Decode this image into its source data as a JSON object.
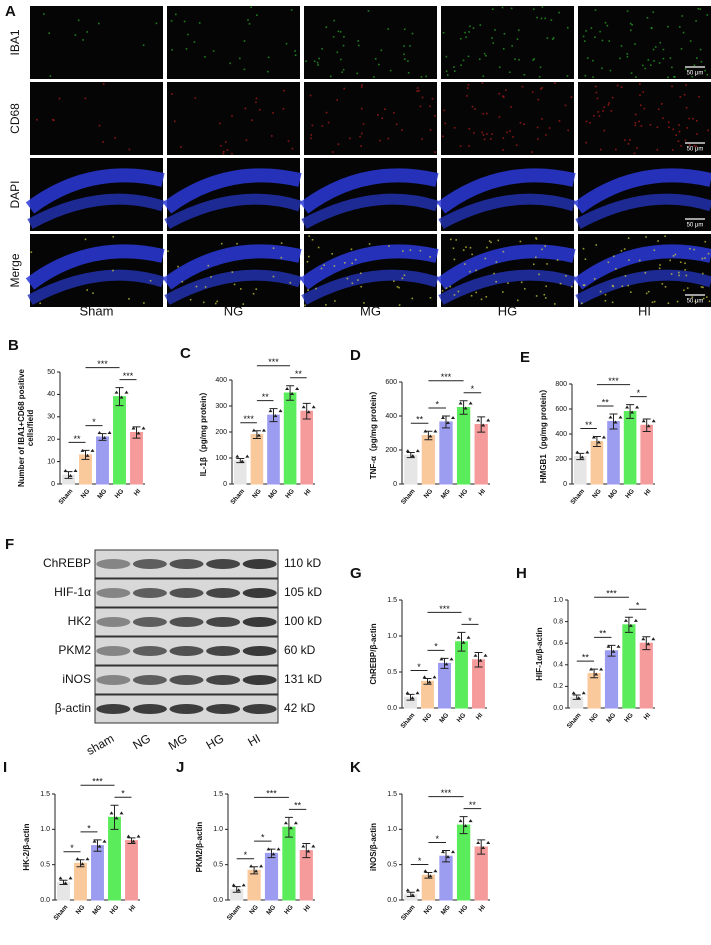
{
  "panels": {
    "label": "A",
    "rows": [
      "IBA1",
      "CD68",
      "DAPI",
      "Merge"
    ],
    "columns": [
      "Sham",
      "NG",
      "MG",
      "HG",
      "HI"
    ],
    "scale_bar": "50 μm"
  },
  "blot": {
    "label": "F",
    "proteins": [
      "ChREBP",
      "HIF-1α",
      "HK2",
      "PKM2",
      "iNOS",
      "β-actin"
    ],
    "sizes": [
      "110 kD",
      "105 kD",
      "100 kD",
      "60 kD",
      "131 kD",
      "42 kD"
    ],
    "lanes": [
      "sham",
      "NG",
      "MG",
      "HG",
      "HI"
    ]
  },
  "chart_data": [
    {
      "type": "bar",
      "label": "B",
      "ylabel": [
        "Number of IBA1+CD68 positive",
        "cells/field"
      ],
      "categories": [
        "Sham",
        "NG",
        "MG",
        "HG",
        "HI"
      ],
      "values": [
        4,
        13,
        21,
        39,
        23
      ],
      "errors": [
        1.5,
        2,
        1.5,
        4,
        2.5
      ],
      "colors": [
        "#e6e6e6",
        "#f9c99c",
        "#9c9cf0",
        "#5bec5b",
        "#f59b9b"
      ],
      "ylim": [
        0,
        50
      ],
      "yticks": [
        0,
        10,
        20,
        30,
        40,
        50
      ],
      "significance": [
        {
          "between": [
            "Sham",
            "NG"
          ],
          "label": "**"
        },
        {
          "between": [
            "NG",
            "MG"
          ],
          "label": "*"
        },
        {
          "between": [
            "NG",
            "HG"
          ],
          "label": "***"
        },
        {
          "between": [
            "HG",
            "HI"
          ],
          "label": "***"
        }
      ]
    },
    {
      "type": "bar",
      "label": "C",
      "ylabel": "IL-1β（pg/mg protein）",
      "categories": [
        "Sham",
        "NG",
        "MG",
        "HG",
        "HI"
      ],
      "values": [
        90,
        190,
        265,
        350,
        280
      ],
      "errors": [
        8,
        15,
        25,
        28,
        30
      ],
      "colors": [
        "#e6e6e6",
        "#f9c99c",
        "#9c9cf0",
        "#5bec5b",
        "#f59b9b"
      ],
      "ylim": [
        0,
        400
      ],
      "yticks": [
        0,
        100,
        200,
        300,
        400
      ],
      "significance": [
        {
          "between": [
            "Sham",
            "NG"
          ],
          "label": "***"
        },
        {
          "between": [
            "NG",
            "MG"
          ],
          "label": "**"
        },
        {
          "between": [
            "NG",
            "HG"
          ],
          "label": "***"
        },
        {
          "between": [
            "HG",
            "HI"
          ],
          "label": "**"
        }
      ]
    },
    {
      "type": "bar",
      "label": "D",
      "ylabel": "TNF-α（pg/mg protein）",
      "categories": [
        "Sham",
        "NG",
        "MG",
        "HG",
        "HI"
      ],
      "values": [
        170,
        285,
        365,
        450,
        350
      ],
      "errors": [
        15,
        25,
        35,
        40,
        45
      ],
      "colors": [
        "#e6e6e6",
        "#f9c99c",
        "#9c9cf0",
        "#5bec5b",
        "#f59b9b"
      ],
      "ylim": [
        0,
        600
      ],
      "yticks": [
        0,
        200,
        400,
        600
      ],
      "significance": [
        {
          "between": [
            "Sham",
            "NG"
          ],
          "label": "**"
        },
        {
          "between": [
            "NG",
            "MG"
          ],
          "label": "*"
        },
        {
          "between": [
            "NG",
            "HG"
          ],
          "label": "***"
        },
        {
          "between": [
            "HG",
            "HI"
          ],
          "label": "*"
        }
      ]
    },
    {
      "type": "bar",
      "label": "E",
      "ylabel": "HMGB1（pg/mg protein）",
      "categories": [
        "Sham",
        "NG",
        "MG",
        "HG",
        "HI"
      ],
      "values": [
        220,
        340,
        500,
        580,
        470
      ],
      "errors": [
        25,
        40,
        60,
        55,
        50
      ],
      "colors": [
        "#e6e6e6",
        "#f9c99c",
        "#9c9cf0",
        "#5bec5b",
        "#f59b9b"
      ],
      "ylim": [
        0,
        800
      ],
      "yticks": [
        0,
        200,
        400,
        600,
        800
      ],
      "significance": [
        {
          "between": [
            "Sham",
            "NG"
          ],
          "label": "**"
        },
        {
          "between": [
            "NG",
            "MG"
          ],
          "label": "**"
        },
        {
          "between": [
            "NG",
            "HG"
          ],
          "label": "***"
        },
        {
          "between": [
            "HG",
            "HI"
          ],
          "label": "*"
        }
      ]
    },
    {
      "type": "bar",
      "label": "G",
      "ylabel": "ChREBP/β-actin",
      "categories": [
        "Sham",
        "NG",
        "MG",
        "HG",
        "HI"
      ],
      "values": [
        0.15,
        0.37,
        0.62,
        0.92,
        0.67
      ],
      "errors": [
        0.04,
        0.04,
        0.07,
        0.13,
        0.1
      ],
      "colors": [
        "#e6e6e6",
        "#f9c99c",
        "#9c9cf0",
        "#5bec5b",
        "#f59b9b"
      ],
      "ylim": [
        0,
        1.5
      ],
      "yticks": [
        {
          "value": 0,
          "label": "0.0"
        },
        {
          "value": 0.5,
          "label": "0.5"
        },
        {
          "value": 1,
          "label": "1.0"
        },
        {
          "value": 1.5,
          "label": "1.5"
        }
      ],
      "significance": [
        {
          "between": [
            "Sham",
            "NG"
          ],
          "label": "*"
        },
        {
          "between": [
            "NG",
            "MG"
          ],
          "label": "*"
        },
        {
          "between": [
            "NG",
            "HG"
          ],
          "label": "***"
        },
        {
          "between": [
            "HG",
            "HI"
          ],
          "label": "*"
        }
      ]
    },
    {
      "type": "bar",
      "label": "H",
      "ylabel": "HIF-1α/β-actin",
      "categories": [
        "Sham",
        "NG",
        "MG",
        "HG",
        "HI"
      ],
      "values": [
        0.1,
        0.32,
        0.53,
        0.77,
        0.6
      ],
      "errors": [
        0.02,
        0.04,
        0.05,
        0.07,
        0.06
      ],
      "colors": [
        "#e6e6e6",
        "#f9c99c",
        "#9c9cf0",
        "#5bec5b",
        "#f59b9b"
      ],
      "ylim": [
        0,
        1
      ],
      "yticks": [
        {
          "value": 0,
          "label": "0.0"
        },
        {
          "value": 0.2,
          "label": "0.2"
        },
        {
          "value": 0.4,
          "label": "0.4"
        },
        {
          "value": 0.6,
          "label": "0.6"
        },
        {
          "value": 0.8,
          "label": "0.8"
        },
        {
          "value": 1,
          "label": "1.0"
        }
      ],
      "significance": [
        {
          "between": [
            "Sham",
            "NG"
          ],
          "label": "**"
        },
        {
          "between": [
            "NG",
            "MG"
          ],
          "label": "**"
        },
        {
          "between": [
            "NG",
            "HG"
          ],
          "label": "***"
        },
        {
          "between": [
            "HG",
            "HI"
          ],
          "label": "*"
        }
      ]
    },
    {
      "type": "bar",
      "label": "I",
      "ylabel": "HK-2/β-actin",
      "categories": [
        "Sham",
        "NG",
        "MG",
        "HG",
        "HI"
      ],
      "values": [
        0.25,
        0.52,
        0.77,
        1.17,
        0.84
      ],
      "errors": [
        0.03,
        0.05,
        0.08,
        0.17,
        0.04
      ],
      "colors": [
        "#e6e6e6",
        "#f9c99c",
        "#9c9cf0",
        "#5bec5b",
        "#f59b9b"
      ],
      "ylim": [
        0,
        1.5
      ],
      "yticks": [
        {
          "value": 0,
          "label": "0.0"
        },
        {
          "value": 0.5,
          "label": "0.5"
        },
        {
          "value": 1,
          "label": "1.0"
        },
        {
          "value": 1.5,
          "label": "1.5"
        }
      ],
      "significance": [
        {
          "between": [
            "Sham",
            "NG"
          ],
          "label": "*"
        },
        {
          "between": [
            "NG",
            "MG"
          ],
          "label": "*"
        },
        {
          "between": [
            "NG",
            "HG"
          ],
          "label": "***"
        },
        {
          "between": [
            "HG",
            "HI"
          ],
          "label": "*"
        }
      ]
    },
    {
      "type": "bar",
      "label": "J",
      "ylabel": "PKM2/β-actin",
      "categories": [
        "Sham",
        "NG",
        "MG",
        "HG",
        "HI"
      ],
      "values": [
        0.15,
        0.42,
        0.66,
        1.03,
        0.7
      ],
      "errors": [
        0.04,
        0.05,
        0.06,
        0.14,
        0.1
      ],
      "colors": [
        "#e6e6e6",
        "#f9c99c",
        "#9c9cf0",
        "#5bec5b",
        "#f59b9b"
      ],
      "ylim": [
        0,
        1.5
      ],
      "yticks": [
        {
          "value": 0,
          "label": "0.0"
        },
        {
          "value": 0.5,
          "label": "0.5"
        },
        {
          "value": 1,
          "label": "1.0"
        },
        {
          "value": 1.5,
          "label": "1.5"
        }
      ],
      "significance": [
        {
          "between": [
            "Sham",
            "NG"
          ],
          "label": "*"
        },
        {
          "between": [
            "NG",
            "MG"
          ],
          "label": "*"
        },
        {
          "between": [
            "NG",
            "HG"
          ],
          "label": "***"
        },
        {
          "between": [
            "HG",
            "HI"
          ],
          "label": "**"
        }
      ]
    },
    {
      "type": "bar",
      "label": "K",
      "ylabel": "iNOS/β-actin",
      "categories": [
        "Sham",
        "NG",
        "MG",
        "HG",
        "HI"
      ],
      "values": [
        0.08,
        0.35,
        0.62,
        1.06,
        0.75
      ],
      "errors": [
        0.03,
        0.04,
        0.08,
        0.12,
        0.1
      ],
      "colors": [
        "#e6e6e6",
        "#f9c99c",
        "#9c9cf0",
        "#5bec5b",
        "#f59b9b"
      ],
      "ylim": [
        0,
        1.5
      ],
      "yticks": [
        {
          "value": 0,
          "label": "0.0"
        },
        {
          "value": 0.5,
          "label": "0.5"
        },
        {
          "value": 1,
          "label": "1.0"
        },
        {
          "value": 1.5,
          "label": "1.5"
        }
      ],
      "significance": [
        {
          "between": [
            "Sham",
            "NG"
          ],
          "label": "*"
        },
        {
          "between": [
            "NG",
            "MG"
          ],
          "label": "*"
        },
        {
          "between": [
            "NG",
            "HG"
          ],
          "label": "***"
        },
        {
          "between": [
            "HG",
            "HI"
          ],
          "label": "**"
        }
      ]
    }
  ]
}
